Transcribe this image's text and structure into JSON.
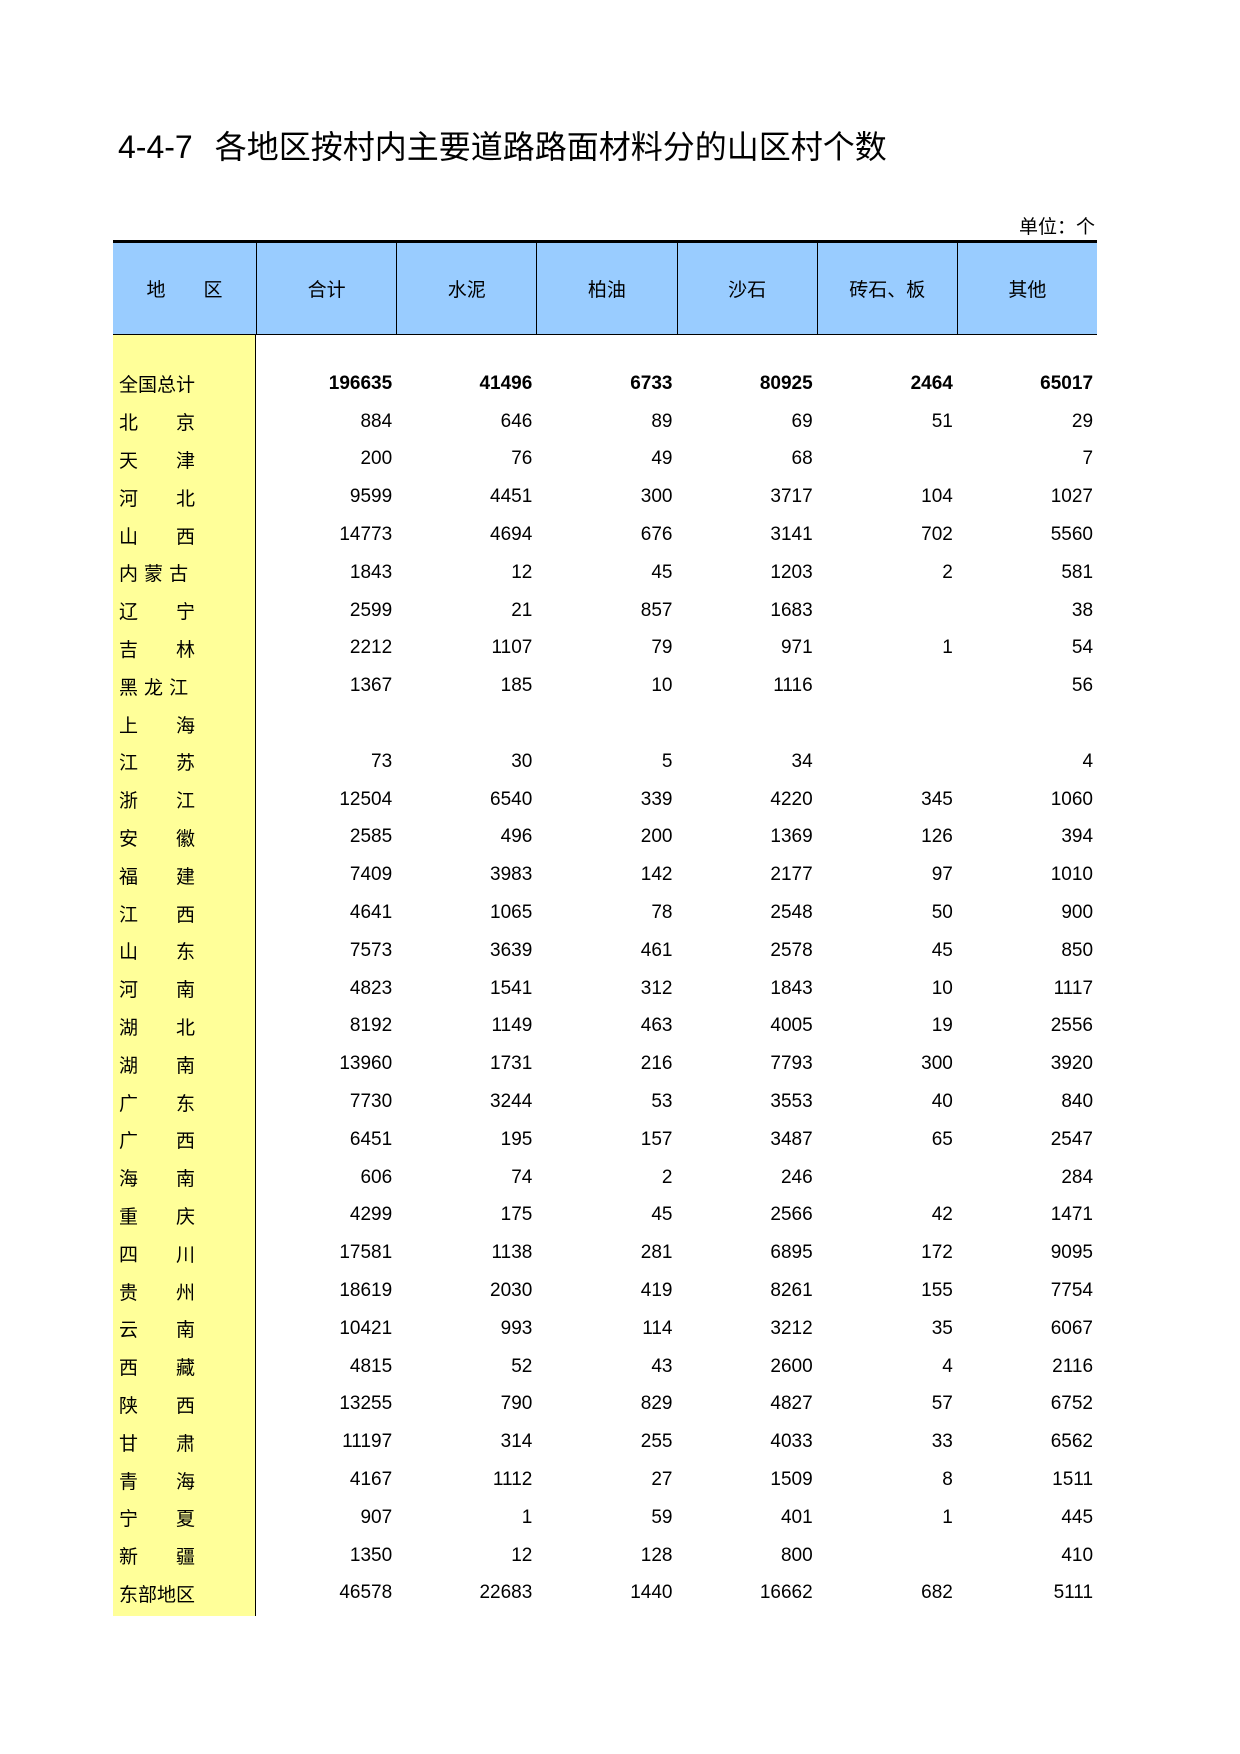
{
  "title": {
    "code": "4-4-7",
    "text": "各地区按村内主要道路路面材料分的山区村个数"
  },
  "unit": "单位：个",
  "headers": [
    "地　　区",
    "合计",
    "水泥",
    "柏油",
    "沙石",
    "砖石、板",
    "其他"
  ],
  "rows": [
    {
      "name": "全国总计",
      "values": [
        "196635",
        "41496",
        "6733",
        "80925",
        "2464",
        "65017"
      ]
    },
    {
      "name": "北　　京",
      "values": [
        "884",
        "646",
        "89",
        "69",
        "51",
        "29"
      ]
    },
    {
      "name": "天　　津",
      "values": [
        "200",
        "76",
        "49",
        "68",
        "",
        "7"
      ]
    },
    {
      "name": "河　　北",
      "values": [
        "9599",
        "4451",
        "300",
        "3717",
        "104",
        "1027"
      ]
    },
    {
      "name": "山　　西",
      "values": [
        "14773",
        "4694",
        "676",
        "3141",
        "702",
        "5560"
      ]
    },
    {
      "name": "内 蒙 古",
      "values": [
        "1843",
        "12",
        "45",
        "1203",
        "2",
        "581"
      ]
    },
    {
      "name": "辽　　宁",
      "values": [
        "2599",
        "21",
        "857",
        "1683",
        "",
        "38"
      ]
    },
    {
      "name": "吉　　林",
      "values": [
        "2212",
        "1107",
        "79",
        "971",
        "1",
        "54"
      ]
    },
    {
      "name": "黑 龙 江",
      "values": [
        "1367",
        "185",
        "10",
        "1116",
        "",
        "56"
      ]
    },
    {
      "name": "上　　海",
      "values": [
        "",
        "",
        "",
        "",
        "",
        ""
      ]
    },
    {
      "name": "江　　苏",
      "values": [
        "73",
        "30",
        "5",
        "34",
        "",
        "4"
      ]
    },
    {
      "name": "浙　　江",
      "values": [
        "12504",
        "6540",
        "339",
        "4220",
        "345",
        "1060"
      ]
    },
    {
      "name": "安　　徽",
      "values": [
        "2585",
        "496",
        "200",
        "1369",
        "126",
        "394"
      ]
    },
    {
      "name": "福　　建",
      "values": [
        "7409",
        "3983",
        "142",
        "2177",
        "97",
        "1010"
      ]
    },
    {
      "name": "江　　西",
      "values": [
        "4641",
        "1065",
        "78",
        "2548",
        "50",
        "900"
      ]
    },
    {
      "name": "山　　东",
      "values": [
        "7573",
        "3639",
        "461",
        "2578",
        "45",
        "850"
      ]
    },
    {
      "name": "河　　南",
      "values": [
        "4823",
        "1541",
        "312",
        "1843",
        "10",
        "1117"
      ]
    },
    {
      "name": "湖　　北",
      "values": [
        "8192",
        "1149",
        "463",
        "4005",
        "19",
        "2556"
      ]
    },
    {
      "name": "湖　　南",
      "values": [
        "13960",
        "1731",
        "216",
        "7793",
        "300",
        "3920"
      ]
    },
    {
      "name": "广　　东",
      "values": [
        "7730",
        "3244",
        "53",
        "3553",
        "40",
        "840"
      ]
    },
    {
      "name": "广　　西",
      "values": [
        "6451",
        "195",
        "157",
        "3487",
        "65",
        "2547"
      ]
    },
    {
      "name": "海　　南",
      "values": [
        "606",
        "74",
        "2",
        "246",
        "",
        "284"
      ]
    },
    {
      "name": "重　　庆",
      "values": [
        "4299",
        "175",
        "45",
        "2566",
        "42",
        "1471"
      ]
    },
    {
      "name": "四　　川",
      "values": [
        "17581",
        "1138",
        "281",
        "6895",
        "172",
        "9095"
      ]
    },
    {
      "name": "贵　　州",
      "values": [
        "18619",
        "2030",
        "419",
        "8261",
        "155",
        "7754"
      ]
    },
    {
      "name": "云　　南",
      "values": [
        "10421",
        "993",
        "114",
        "3212",
        "35",
        "6067"
      ]
    },
    {
      "name": "西　　藏",
      "values": [
        "4815",
        "52",
        "43",
        "2600",
        "4",
        "2116"
      ]
    },
    {
      "name": "陕　　西",
      "values": [
        "13255",
        "790",
        "829",
        "4827",
        "57",
        "6752"
      ]
    },
    {
      "name": "甘　　肃",
      "values": [
        "11197",
        "314",
        "255",
        "4033",
        "33",
        "6562"
      ]
    },
    {
      "name": "青　　海",
      "values": [
        "4167",
        "1112",
        "27",
        "1509",
        "8",
        "1511"
      ]
    },
    {
      "name": "宁　　夏",
      "values": [
        "907",
        "1",
        "59",
        "401",
        "1",
        "445"
      ]
    },
    {
      "name": "新　　疆",
      "values": [
        "1350",
        "12",
        "128",
        "800",
        "",
        "410"
      ]
    },
    {
      "name": "东部地区",
      "values": [
        "46578",
        "22683",
        "1440",
        "16662",
        "682",
        "5111"
      ]
    }
  ],
  "colors": {
    "header_bg": "#99ccff",
    "region_bg": "#ffff99"
  }
}
